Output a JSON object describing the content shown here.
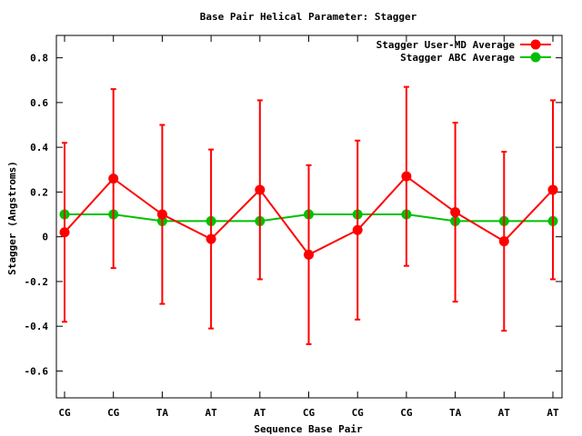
{
  "chart_data": {
    "type": "line",
    "title": "Base Pair Helical Parameter: Stagger",
    "xlabel": "Sequence Base Pair",
    "ylabel": "Stagger (Angstroms)",
    "categories": [
      "CG",
      "CG",
      "TA",
      "AT",
      "AT",
      "CG",
      "CG",
      "CG",
      "TA",
      "AT",
      "AT"
    ],
    "ylim": [
      -0.72,
      0.9
    ],
    "yticks": [
      -0.6,
      -0.4,
      -0.2,
      0,
      0.2,
      0.4,
      0.6,
      0.8
    ],
    "ytick_labels": [
      "-0.6",
      "-0.4",
      "-0.2",
      "0",
      "0.2",
      "0.4",
      "0.6",
      "0.8"
    ],
    "grid": false,
    "legend_position": "top-right",
    "series": [
      {
        "name": "Stagger User-MD Average",
        "color": "#ff0000",
        "values": [
          0.02,
          0.26,
          0.1,
          -0.01,
          0.21,
          -0.08,
          0.03,
          0.27,
          0.11,
          -0.02,
          0.21
        ],
        "error": [
          0.4,
          0.4,
          0.4,
          0.4,
          0.4,
          0.4,
          0.4,
          0.4,
          0.4,
          0.4,
          0.4
        ]
      },
      {
        "name": "Stagger ABC Average",
        "color": "#00c000",
        "values": [
          0.1,
          0.1,
          0.07,
          0.07,
          0.07,
          0.1,
          0.1,
          0.1,
          0.07,
          0.07,
          0.07
        ]
      }
    ]
  }
}
